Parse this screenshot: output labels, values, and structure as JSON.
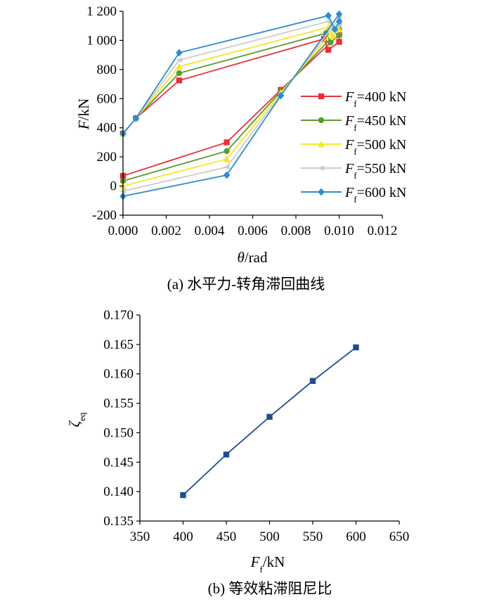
{
  "chart_data": [
    {
      "type": "line",
      "caption": "(a) 水平力-转角滞回曲线",
      "xlabel": {
        "symbol": "θ",
        "unit": "/rad"
      },
      "ylabel": {
        "symbol": "F",
        "unit": "/kN"
      },
      "xlim": [
        0,
        0.012
      ],
      "ylim": [
        -200,
        1200
      ],
      "xticks": [
        "0.000",
        "0.002",
        "0.004",
        "0.006",
        "0.008",
        "0.010",
        "0.012"
      ],
      "yticks": [
        "-200",
        "0",
        "200",
        "400",
        "600",
        "800",
        "1 000",
        "1 200"
      ],
      "grid": false,
      "legend_position": "right",
      "series": [
        {
          "name": "400 kN",
          "legend_prefix": "F",
          "legend_sub": "f",
          "legend_eq": "=",
          "color": "#e8303a",
          "marker": "square",
          "x": [
            0.0,
            0.0006,
            0.0026,
            0.0093,
            0.0095,
            0.01,
            0.01,
            0.0073,
            0.0048,
            0.0
          ],
          "y": [
            360,
            465,
            725,
            1010,
            935,
            990,
            1040,
            660,
            300,
            70
          ]
        },
        {
          "name": "450 kN",
          "legend_prefix": "F",
          "legend_sub": "f",
          "legend_eq": "=",
          "color": "#5c9a2e",
          "marker": "circle",
          "x": [
            0.0,
            0.0006,
            0.0026,
            0.0094,
            0.0096,
            0.01,
            0.01,
            0.0073,
            0.0048,
            0.0
          ],
          "y": [
            360,
            465,
            775,
            1050,
            985,
            1035,
            1075,
            650,
            240,
            35
          ]
        },
        {
          "name": "500 kN",
          "legend_prefix": "F",
          "legend_sub": "f",
          "legend_eq": "=",
          "color": "#f5e62a",
          "marker": "triangle",
          "x": [
            0.0,
            0.0006,
            0.0026,
            0.0095,
            0.0097,
            0.01,
            0.01,
            0.0073,
            0.0048,
            0.0
          ],
          "y": [
            360,
            465,
            820,
            1090,
            1030,
            1075,
            1115,
            640,
            185,
            0
          ]
        },
        {
          "name": "550 kN",
          "legend_prefix": "F",
          "legend_sub": "f",
          "legend_eq": "=",
          "color": "#cccccc",
          "marker": "arrow",
          "x": [
            0.0,
            0.0006,
            0.0026,
            0.0095,
            0.0098,
            0.01,
            0.01,
            0.0073,
            0.0048,
            0.0
          ],
          "y": [
            360,
            465,
            865,
            1130,
            1065,
            1105,
            1150,
            630,
            130,
            -35
          ]
        },
        {
          "name": "600 kN",
          "legend_prefix": "F",
          "legend_sub": "f",
          "legend_eq": "=",
          "color": "#2e8cc8",
          "marker": "diamond",
          "x": [
            0.0,
            0.0006,
            0.0026,
            0.0095,
            0.0098,
            0.01,
            0.01,
            0.0073,
            0.0048,
            0.0
          ],
          "y": [
            360,
            465,
            915,
            1170,
            1075,
            1130,
            1180,
            620,
            75,
            -70
          ]
        }
      ]
    },
    {
      "type": "line",
      "caption": "(b) 等效粘滞阻尼比",
      "xlabel": {
        "symbol": "F",
        "sub": "f",
        "unit": "/kN"
      },
      "ylabel": {
        "symbol": "ζ",
        "sub": "eq"
      },
      "xlim": [
        350,
        650
      ],
      "ylim": [
        0.135,
        0.17
      ],
      "xticks": [
        "350",
        "400",
        "450",
        "500",
        "550",
        "600",
        "650"
      ],
      "yticks": [
        "0.135",
        "0.140",
        "0.145",
        "0.150",
        "0.155",
        "0.160",
        "0.165",
        "0.170"
      ],
      "grid": false,
      "series": [
        {
          "color": "#1f4e8c",
          "marker": "square",
          "x": [
            400,
            450,
            500,
            550,
            600
          ],
          "y": [
            0.1394,
            0.1463,
            0.1527,
            0.1588,
            0.1645
          ]
        }
      ]
    }
  ]
}
